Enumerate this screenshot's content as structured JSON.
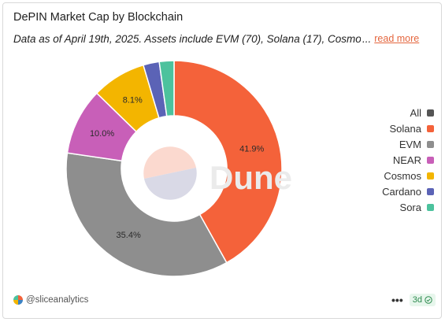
{
  "header": {
    "title": "DePIN Market Cap by Blockchain",
    "subtitle": "Data as of April 19th, 2025. Assets include EVM (70), Solana (17), Cosmos",
    "ellipsis": "...",
    "read_more": "read more"
  },
  "chart_data": {
    "type": "pie",
    "donut": true,
    "categories": [
      "Solana",
      "EVM",
      "NEAR",
      "Cosmos",
      "Cardano",
      "Sora"
    ],
    "values": [
      41.9,
      35.4,
      10.0,
      8.1,
      2.4,
      2.2
    ],
    "labels": [
      "41.9%",
      "35.4%",
      "10.0%",
      "8.1%",
      "",
      ""
    ],
    "colors": [
      "#f4623a",
      "#8e8e8e",
      "#c85fb8",
      "#f3b500",
      "#5b63b6",
      "#4cc29d"
    ],
    "legend_placement": "right",
    "legend": [
      {
        "name": "All",
        "color": "#555555"
      },
      {
        "name": "Solana",
        "color": "#f4623a"
      },
      {
        "name": "EVM",
        "color": "#8e8e8e"
      },
      {
        "name": "NEAR",
        "color": "#c85fb8"
      },
      {
        "name": "Cosmos",
        "color": "#f3b500"
      },
      {
        "name": "Cardano",
        "color": "#5b63b6"
      },
      {
        "name": "Sora",
        "color": "#4cc29d"
      }
    ],
    "watermark": "Dune"
  },
  "footer": {
    "author": "@sliceanalytics",
    "freshness": "3d",
    "more_icon": "more-dots-icon",
    "check_icon": "check-circle-icon"
  }
}
